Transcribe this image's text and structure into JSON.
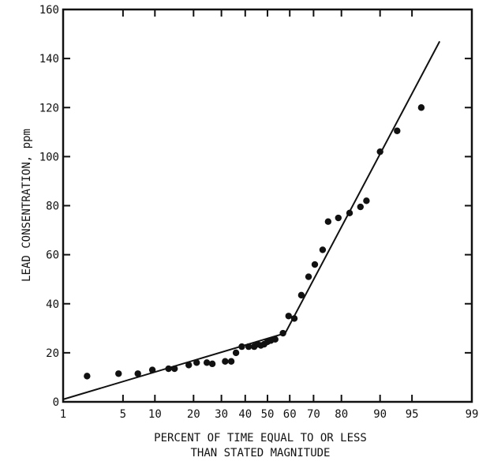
{
  "chart_data": {
    "type": "scatter",
    "title": "",
    "xlabel_line1": "PERCENT OF TIME EQUAL TO OR LESS",
    "xlabel_line2": "THAN STATED MAGNITUDE",
    "ylabel": "LEAD CONSENTRATION, ppm",
    "x_scale": "normal-probability",
    "xlim": [
      1,
      99
    ],
    "ylim": [
      0,
      160
    ],
    "x_ticks": [
      1,
      5,
      10,
      20,
      30,
      40,
      50,
      60,
      70,
      80,
      90,
      95,
      99
    ],
    "x_tick_labels": [
      "1",
      "5",
      "10",
      "20",
      "30",
      "40",
      "50",
      "60",
      "70",
      "80",
      "90",
      "95",
      "99"
    ],
    "y_ticks": [
      0,
      20,
      40,
      60,
      80,
      100,
      120,
      140,
      160
    ],
    "y_tick_labels": [
      "0",
      "20",
      "40",
      "60",
      "80",
      "100",
      "120",
      "140",
      "160"
    ],
    "grid": false,
    "series": [
      {
        "points": [
          [
            2,
            10.5
          ],
          [
            4.5,
            11.5
          ],
          [
            7,
            11.5
          ],
          [
            9.5,
            13
          ],
          [
            13,
            13.5
          ],
          [
            14.5,
            13.5
          ],
          [
            18.5,
            15
          ],
          [
            21,
            16
          ],
          [
            24.5,
            16
          ],
          [
            26.5,
            15.5
          ],
          [
            31.5,
            16.5
          ],
          [
            34,
            16.5
          ],
          [
            36,
            20
          ],
          [
            38.5,
            22.5
          ],
          [
            41.5,
            22.5
          ],
          [
            44,
            22.5
          ],
          [
            45.5,
            23.5
          ],
          [
            47,
            23
          ],
          [
            48.5,
            23.5
          ],
          [
            50,
            24.5
          ],
          [
            51.5,
            25
          ],
          [
            53.5,
            25.5
          ],
          [
            57,
            28
          ],
          [
            59.5,
            35
          ],
          [
            62,
            34
          ],
          [
            65,
            43.5
          ],
          [
            68,
            51
          ],
          [
            70.5,
            56
          ],
          [
            73.5,
            62
          ],
          [
            75.5,
            73.5
          ],
          [
            79,
            75
          ],
          [
            82.5,
            77
          ],
          [
            85.5,
            79.5
          ],
          [
            87,
            82
          ],
          [
            90,
            102
          ],
          [
            93,
            110.5
          ],
          [
            96,
            120
          ]
        ]
      }
    ],
    "fit_lines": [
      {
        "from": [
          1,
          1
        ],
        "to": [
          58,
          28
        ]
      },
      {
        "from": [
          58,
          28
        ],
        "to": [
          97.5,
          147
        ]
      }
    ]
  }
}
